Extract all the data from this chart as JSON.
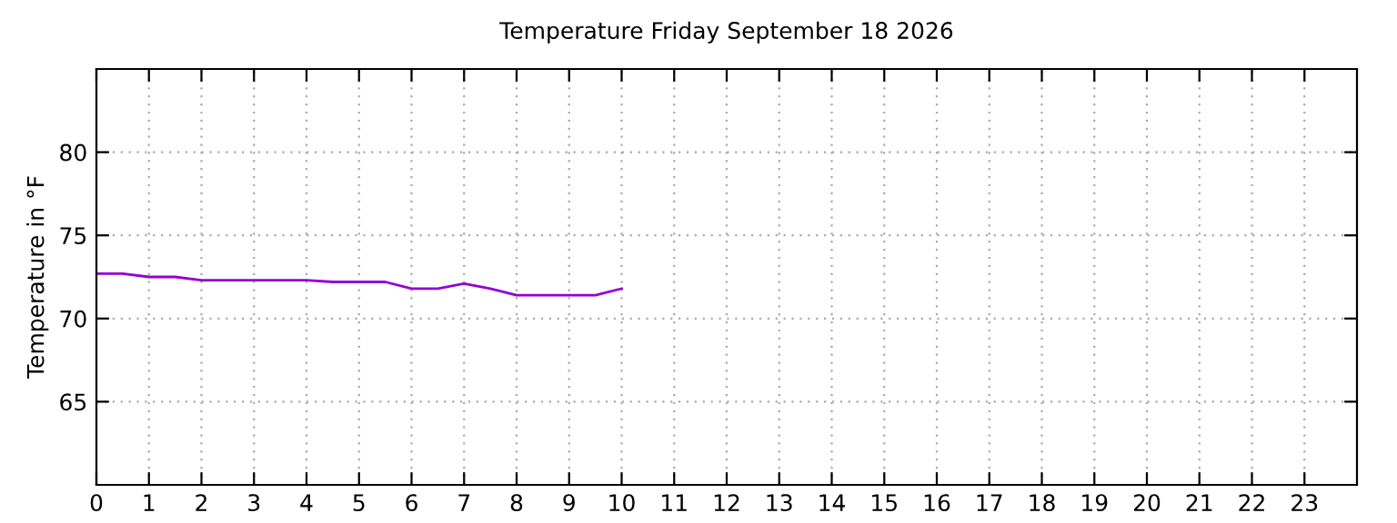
{
  "chart_data": {
    "type": "line",
    "title": "Temperature Friday September 18 2026",
    "ylabel": "Temperature in °F",
    "x": [
      0,
      0.5,
      1,
      1.5,
      2,
      2.5,
      3,
      3.5,
      4,
      4.5,
      5,
      5.5,
      6,
      6.5,
      7,
      7.5,
      8,
      8.5,
      9,
      9.5,
      10
    ],
    "series": [
      {
        "color": "#9400d3",
        "values": [
          72.7,
          72.7,
          72.5,
          72.5,
          72.3,
          72.3,
          72.3,
          72.3,
          72.3,
          72.2,
          72.2,
          72.2,
          71.8,
          71.8,
          72.1,
          71.8,
          71.4,
          71.4,
          71.4,
          71.4,
          71.8
        ]
      }
    ],
    "xlim": [
      0,
      24
    ],
    "xticks": [
      0,
      1,
      2,
      3,
      4,
      5,
      6,
      7,
      8,
      9,
      10,
      11,
      12,
      13,
      14,
      15,
      16,
      17,
      18,
      19,
      20,
      21,
      22,
      23
    ],
    "ylim": [
      60,
      85
    ],
    "yticks": [
      65,
      70,
      75,
      80
    ],
    "grid": true,
    "line_style": "solid",
    "marker": "none"
  }
}
